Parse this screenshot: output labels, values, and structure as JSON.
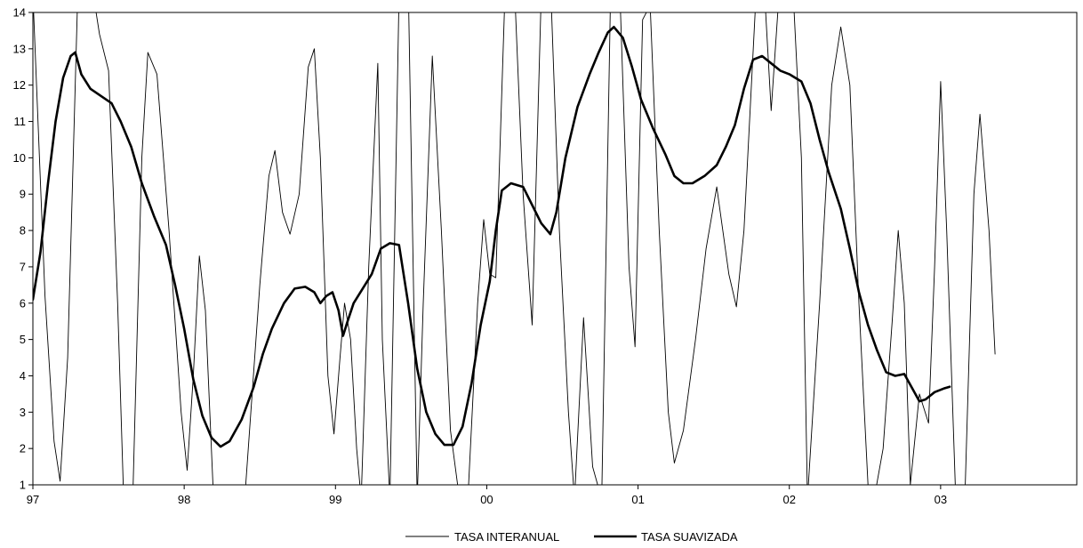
{
  "chart_data": {
    "type": "line",
    "title": "",
    "xlabel": "",
    "ylabel": "",
    "xlim": [
      0,
      6.9
    ],
    "ylim": [
      1,
      14
    ],
    "grid": false,
    "legend_position": "bottom-center",
    "x_ticks": [
      {
        "value": 0,
        "label": "97"
      },
      {
        "value": 1,
        "label": "98"
      },
      {
        "value": 2,
        "label": "99"
      },
      {
        "value": 3,
        "label": "00"
      },
      {
        "value": 4,
        "label": "01"
      },
      {
        "value": 5,
        "label": "02"
      },
      {
        "value": 6,
        "label": "03"
      }
    ],
    "y_ticks": [
      1,
      2,
      3,
      4,
      5,
      6,
      7,
      8,
      9,
      10,
      11,
      12,
      13,
      14
    ],
    "series": [
      {
        "name": "TASA INTERANUAL",
        "color": "#000000",
        "style": "thin",
        "points": [
          [
            0.0,
            14.5
          ],
          [
            0.08,
            6.2
          ],
          [
            0.14,
            2.2
          ],
          [
            0.18,
            1.1
          ],
          [
            0.23,
            4.5
          ],
          [
            0.3,
            15.0
          ],
          [
            0.38,
            15.0
          ],
          [
            0.44,
            13.4
          ],
          [
            0.5,
            12.4
          ],
          [
            0.56,
            6.0
          ],
          [
            0.6,
            0.6
          ],
          [
            0.66,
            0.6
          ],
          [
            0.72,
            10.0
          ],
          [
            0.76,
            12.9
          ],
          [
            0.82,
            12.3
          ],
          [
            0.9,
            8.0
          ],
          [
            0.98,
            3.0
          ],
          [
            1.02,
            1.4
          ],
          [
            1.06,
            4.0
          ],
          [
            1.1,
            7.3
          ],
          [
            1.14,
            5.8
          ],
          [
            1.19,
            1.0
          ],
          [
            1.25,
            0.6
          ],
          [
            1.4,
            0.6
          ],
          [
            1.5,
            6.5
          ],
          [
            1.56,
            9.5
          ],
          [
            1.6,
            10.2
          ],
          [
            1.65,
            8.5
          ],
          [
            1.7,
            7.9
          ],
          [
            1.76,
            9.0
          ],
          [
            1.82,
            12.5
          ],
          [
            1.86,
            13.0
          ],
          [
            1.9,
            10.0
          ],
          [
            1.95,
            4.0
          ],
          [
            1.99,
            2.4
          ],
          [
            2.03,
            4.5
          ],
          [
            2.06,
            6.0
          ],
          [
            2.1,
            5.0
          ],
          [
            2.14,
            2.0
          ],
          [
            2.17,
            0.6
          ],
          [
            2.22,
            7.0
          ],
          [
            2.28,
            12.6
          ],
          [
            2.31,
            5.0
          ],
          [
            2.36,
            0.6
          ],
          [
            2.42,
            14.5
          ],
          [
            2.48,
            15.0
          ],
          [
            2.54,
            0.6
          ],
          [
            2.58,
            6.0
          ],
          [
            2.64,
            12.8
          ],
          [
            2.7,
            8.0
          ],
          [
            2.76,
            2.5
          ],
          [
            2.82,
            0.6
          ],
          [
            2.88,
            1.0
          ],
          [
            2.94,
            6.0
          ],
          [
            2.98,
            8.3
          ],
          [
            3.02,
            6.8
          ],
          [
            3.06,
            6.7
          ],
          [
            3.12,
            14.5
          ],
          [
            3.18,
            15.0
          ],
          [
            3.24,
            9.0
          ],
          [
            3.3,
            5.4
          ],
          [
            3.36,
            14.5
          ],
          [
            3.42,
            15.0
          ],
          [
            3.48,
            8.0
          ],
          [
            3.54,
            3.0
          ],
          [
            3.58,
            0.6
          ],
          [
            3.64,
            5.6
          ],
          [
            3.7,
            1.5
          ],
          [
            3.76,
            0.6
          ],
          [
            3.82,
            15.0
          ],
          [
            3.88,
            14.5
          ],
          [
            3.94,
            7.0
          ],
          [
            3.98,
            4.8
          ],
          [
            4.03,
            13.8
          ],
          [
            4.08,
            14.2
          ],
          [
            4.14,
            8.0
          ],
          [
            4.2,
            3.0
          ],
          [
            4.24,
            1.6
          ],
          [
            4.3,
            2.5
          ],
          [
            4.38,
            5.0
          ],
          [
            4.45,
            7.5
          ],
          [
            4.52,
            9.2
          ],
          [
            4.6,
            6.8
          ],
          [
            4.65,
            5.9
          ],
          [
            4.7,
            8.0
          ],
          [
            4.78,
            14.5
          ],
          [
            4.83,
            15.0
          ],
          [
            4.88,
            11.3
          ],
          [
            4.94,
            15.0
          ],
          [
            5.02,
            15.0
          ],
          [
            5.08,
            10.0
          ],
          [
            5.12,
            0.6
          ],
          [
            5.2,
            6.0
          ],
          [
            5.28,
            12.0
          ],
          [
            5.34,
            13.6
          ],
          [
            5.4,
            12.0
          ],
          [
            5.46,
            6.0
          ],
          [
            5.52,
            1.0
          ],
          [
            5.56,
            0.6
          ],
          [
            5.62,
            2.0
          ],
          [
            5.68,
            5.5
          ],
          [
            5.72,
            8.0
          ],
          [
            5.76,
            6.0
          ],
          [
            5.8,
            1.0
          ],
          [
            5.86,
            3.5
          ],
          [
            5.92,
            2.7
          ],
          [
            5.96,
            7.0
          ],
          [
            6.0,
            12.1
          ],
          [
            6.04,
            8.0
          ],
          [
            6.1,
            0.6
          ],
          [
            6.16,
            0.6
          ],
          [
            6.22,
            9.0
          ],
          [
            6.26,
            11.2
          ],
          [
            6.32,
            8.0
          ],
          [
            6.36,
            4.6
          ]
        ]
      },
      {
        "name": "TASA SUAVIZADA",
        "color": "#000000",
        "style": "thick",
        "points": [
          [
            0.0,
            6.1
          ],
          [
            0.05,
            7.4
          ],
          [
            0.1,
            9.3
          ],
          [
            0.15,
            11.0
          ],
          [
            0.2,
            12.2
          ],
          [
            0.25,
            12.8
          ],
          [
            0.28,
            12.9
          ],
          [
            0.32,
            12.3
          ],
          [
            0.38,
            11.9
          ],
          [
            0.45,
            11.7
          ],
          [
            0.52,
            11.5
          ],
          [
            0.58,
            11.0
          ],
          [
            0.65,
            10.3
          ],
          [
            0.72,
            9.3
          ],
          [
            0.8,
            8.4
          ],
          [
            0.88,
            7.6
          ],
          [
            0.94,
            6.5
          ],
          [
            1.0,
            5.3
          ],
          [
            1.06,
            3.9
          ],
          [
            1.12,
            2.9
          ],
          [
            1.18,
            2.3
          ],
          [
            1.24,
            2.05
          ],
          [
            1.3,
            2.2
          ],
          [
            1.38,
            2.8
          ],
          [
            1.46,
            3.7
          ],
          [
            1.52,
            4.6
          ],
          [
            1.58,
            5.3
          ],
          [
            1.66,
            6.0
          ],
          [
            1.73,
            6.4
          ],
          [
            1.8,
            6.45
          ],
          [
            1.86,
            6.3
          ],
          [
            1.9,
            6.0
          ],
          [
            1.94,
            6.2
          ],
          [
            1.98,
            6.3
          ],
          [
            2.02,
            5.8
          ],
          [
            2.05,
            5.1
          ],
          [
            2.08,
            5.5
          ],
          [
            2.12,
            6.0
          ],
          [
            2.18,
            6.4
          ],
          [
            2.24,
            6.8
          ],
          [
            2.3,
            7.5
          ],
          [
            2.36,
            7.65
          ],
          [
            2.42,
            7.6
          ],
          [
            2.48,
            6.0
          ],
          [
            2.54,
            4.2
          ],
          [
            2.6,
            3.0
          ],
          [
            2.66,
            2.4
          ],
          [
            2.72,
            2.1
          ],
          [
            2.78,
            2.1
          ],
          [
            2.84,
            2.6
          ],
          [
            2.9,
            3.8
          ],
          [
            2.96,
            5.4
          ],
          [
            3.02,
            6.6
          ],
          [
            3.06,
            8.0
          ],
          [
            3.1,
            9.1
          ],
          [
            3.16,
            9.3
          ],
          [
            3.24,
            9.2
          ],
          [
            3.3,
            8.7
          ],
          [
            3.36,
            8.2
          ],
          [
            3.42,
            7.9
          ],
          [
            3.46,
            8.5
          ],
          [
            3.52,
            10.0
          ],
          [
            3.6,
            11.4
          ],
          [
            3.68,
            12.3
          ],
          [
            3.74,
            12.9
          ],
          [
            3.8,
            13.45
          ],
          [
            3.84,
            13.6
          ],
          [
            3.9,
            13.3
          ],
          [
            3.96,
            12.5
          ],
          [
            4.02,
            11.6
          ],
          [
            4.1,
            10.8
          ],
          [
            4.18,
            10.1
          ],
          [
            4.24,
            9.5
          ],
          [
            4.3,
            9.3
          ],
          [
            4.36,
            9.3
          ],
          [
            4.44,
            9.5
          ],
          [
            4.52,
            9.8
          ],
          [
            4.58,
            10.3
          ],
          [
            4.64,
            10.9
          ],
          [
            4.7,
            11.9
          ],
          [
            4.76,
            12.7
          ],
          [
            4.82,
            12.8
          ],
          [
            4.88,
            12.6
          ],
          [
            4.94,
            12.4
          ],
          [
            5.0,
            12.3
          ],
          [
            5.08,
            12.1
          ],
          [
            5.14,
            11.5
          ],
          [
            5.2,
            10.5
          ],
          [
            5.26,
            9.6
          ],
          [
            5.34,
            8.6
          ],
          [
            5.4,
            7.5
          ],
          [
            5.46,
            6.3
          ],
          [
            5.52,
            5.4
          ],
          [
            5.58,
            4.7
          ],
          [
            5.64,
            4.1
          ],
          [
            5.7,
            4.0
          ],
          [
            5.76,
            4.05
          ],
          [
            5.82,
            3.6
          ],
          [
            5.86,
            3.3
          ],
          [
            5.9,
            3.35
          ],
          [
            5.96,
            3.55
          ],
          [
            6.02,
            3.65
          ],
          [
            6.06,
            3.7
          ]
        ]
      }
    ]
  }
}
